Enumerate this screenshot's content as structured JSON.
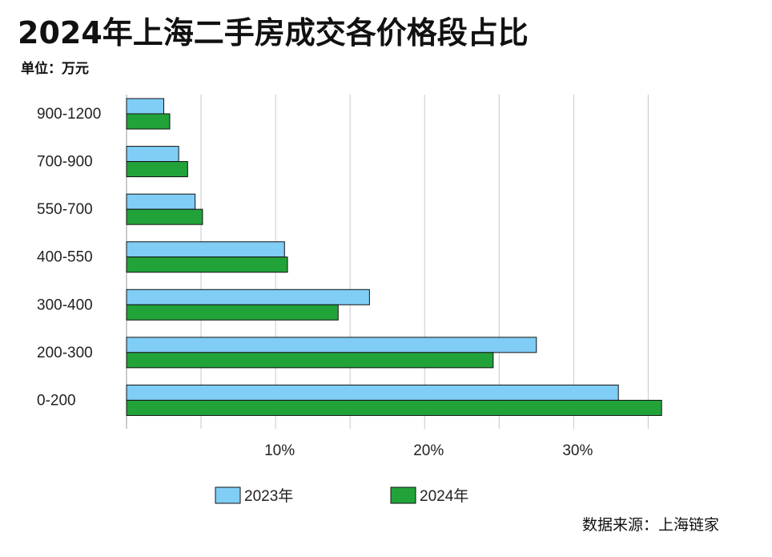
{
  "title": "2024年上海二手房成交各价格段占比",
  "unit_label": "单位：万元",
  "source_label": "数据来源：上海链家",
  "colors": {
    "series_2023": "#80cdf5",
    "series_2024": "#22a33a",
    "grid": "#c8c8c8",
    "bar_stroke": "#111111"
  },
  "chart_data": {
    "type": "bar",
    "orientation": "horizontal",
    "categories": [
      "900-1200",
      "700-900",
      "550-700",
      "400-550",
      "300-400",
      "200-300",
      "0-200"
    ],
    "series": [
      {
        "name": "2023年",
        "values": [
          2.5,
          3.5,
          4.6,
          10.6,
          16.3,
          27.5,
          33.0
        ]
      },
      {
        "name": "2024年",
        "values": [
          2.9,
          4.1,
          5.1,
          10.8,
          14.2,
          24.6,
          35.9
        ]
      }
    ],
    "xlim": [
      0,
      36
    ],
    "x_ticks": [
      10,
      20,
      30
    ],
    "x_tick_labels": [
      "10%",
      "20%",
      "30%"
    ],
    "grid": true,
    "legend_position": "bottom"
  }
}
